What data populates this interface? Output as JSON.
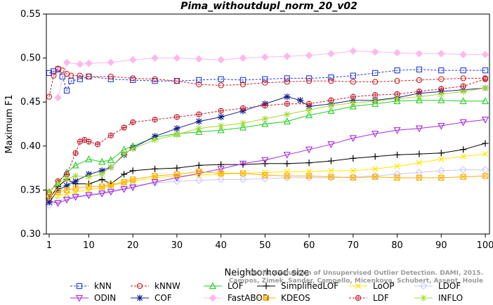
{
  "chart_data": {
    "type": "line",
    "title": "Pima_withoutdupl_norm_20_v02",
    "xlabel": "Neighborhood size",
    "ylabel": "Maximum F1",
    "xlim": [
      1,
      100
    ],
    "ylim": [
      0.3,
      0.55
    ],
    "xticks": [
      1,
      10,
      20,
      30,
      40,
      50,
      60,
      70,
      80,
      90,
      100
    ],
    "yticks": [
      0.3,
      0.35,
      0.4,
      0.45,
      0.5,
      0.55
    ],
    "ytick_labels": [
      "0.30",
      "0.35",
      "0.40",
      "0.45",
      "0.50",
      "0.55"
    ],
    "grid": false,
    "legend_position": "bottom",
    "watermark": "Campos, Zimek, Sander, Campello, Micenkova, Schubert, Assent, Houle",
    "watermark_line1": "On the Evaluation of Unsupervised Outlier Detection. DAMI, 2015.",
    "series": [
      {
        "name": "kNN",
        "color": "#1f3fdc",
        "marker": "square",
        "dash": "3,2",
        "x": [
          1,
          2,
          3,
          4,
          5,
          6,
          8,
          10,
          15,
          20,
          25,
          30,
          35,
          40,
          45,
          50,
          55,
          60,
          65,
          70,
          75,
          80,
          85,
          90,
          95,
          100
        ],
        "y": [
          0.483,
          0.485,
          0.487,
          0.479,
          0.463,
          0.474,
          0.476,
          0.479,
          0.476,
          0.475,
          0.474,
          0.474,
          0.475,
          0.476,
          0.475,
          0.476,
          0.477,
          0.477,
          0.478,
          0.48,
          0.483,
          0.486,
          0.487,
          0.486,
          0.486,
          0.486
        ]
      },
      {
        "name": "kNNW",
        "color": "#d21e1e",
        "marker": "circle",
        "dash": "3,2",
        "x": [
          1,
          2,
          3,
          4,
          5,
          6,
          8,
          10,
          15,
          20,
          25,
          30,
          35,
          40,
          45,
          50,
          55,
          60,
          65,
          70,
          75,
          80,
          85,
          90,
          95,
          100
        ],
        "y": [
          0.456,
          0.48,
          0.488,
          0.486,
          0.482,
          0.48,
          0.48,
          0.479,
          0.479,
          0.477,
          0.476,
          0.474,
          0.47,
          0.469,
          0.47,
          0.472,
          0.473,
          0.474,
          0.474,
          0.473,
          0.473,
          0.474,
          0.475,
          0.476,
          0.477,
          0.477
        ]
      },
      {
        "name": "LOF",
        "color": "#1fcf1f",
        "marker": "triangle-up",
        "dash": "",
        "x": [
          1,
          3,
          5,
          7,
          10,
          13,
          15,
          18,
          20,
          25,
          30,
          35,
          40,
          45,
          50,
          55,
          60,
          65,
          70,
          75,
          80,
          85,
          90,
          95,
          100
        ],
        "y": [
          0.348,
          0.358,
          0.37,
          0.378,
          0.385,
          0.382,
          0.384,
          0.396,
          0.4,
          0.41,
          0.414,
          0.416,
          0.418,
          0.421,
          0.425,
          0.428,
          0.435,
          0.44,
          0.445,
          0.448,
          0.451,
          0.452,
          0.452,
          0.451,
          0.451
        ]
      },
      {
        "name": "SimplifiedLOF",
        "color": "#000000",
        "marker": "plus",
        "dash": "",
        "x": [
          1,
          3,
          5,
          7,
          10,
          13,
          15,
          18,
          20,
          25,
          30,
          35,
          40,
          45,
          50,
          55,
          60,
          65,
          70,
          75,
          80,
          85,
          90,
          95,
          100
        ],
        "y": [
          0.34,
          0.354,
          0.362,
          0.357,
          0.357,
          0.362,
          0.357,
          0.368,
          0.372,
          0.374,
          0.375,
          0.378,
          0.379,
          0.379,
          0.38,
          0.38,
          0.381,
          0.383,
          0.386,
          0.388,
          0.39,
          0.391,
          0.392,
          0.396,
          0.403
        ]
      },
      {
        "name": "LoOP",
        "color": "#ffe600",
        "marker": "x",
        "dash": "",
        "x": [
          1,
          3,
          5,
          7,
          10,
          13,
          15,
          18,
          20,
          25,
          30,
          35,
          40,
          45,
          50,
          55,
          60,
          65,
          70,
          75,
          80,
          85,
          90,
          95,
          100
        ],
        "y": [
          0.339,
          0.343,
          0.346,
          0.348,
          0.35,
          0.353,
          0.355,
          0.358,
          0.36,
          0.364,
          0.366,
          0.367,
          0.368,
          0.369,
          0.37,
          0.371,
          0.371,
          0.372,
          0.372,
          0.374,
          0.377,
          0.381,
          0.385,
          0.388,
          0.391
        ]
      },
      {
        "name": "LDOF",
        "color": "#c8c8ff",
        "marker": "diamond",
        "dash": "",
        "x": [
          1,
          3,
          5,
          7,
          10,
          13,
          15,
          18,
          20,
          25,
          30,
          35,
          40,
          45,
          50,
          55,
          60,
          65,
          70,
          75,
          80,
          85,
          90,
          95,
          100
        ],
        "y": [
          0.333,
          0.337,
          0.341,
          0.343,
          0.345,
          0.347,
          0.349,
          0.352,
          0.355,
          0.358,
          0.36,
          0.361,
          0.362,
          0.362,
          0.363,
          0.364,
          0.364,
          0.364,
          0.365,
          0.366,
          0.368,
          0.37,
          0.372,
          0.373,
          0.373
        ]
      },
      {
        "name": "ODIN",
        "color": "#a82bd9",
        "marker": "triangle-down",
        "dash": "",
        "x": [
          1,
          3,
          5,
          7,
          10,
          13,
          15,
          18,
          20,
          25,
          30,
          35,
          40,
          45,
          50,
          55,
          60,
          65,
          70,
          75,
          80,
          85,
          90,
          95,
          100
        ],
        "y": [
          0.338,
          0.335,
          0.339,
          0.342,
          0.344,
          0.346,
          0.348,
          0.351,
          0.353,
          0.359,
          0.364,
          0.369,
          0.374,
          0.38,
          0.384,
          0.39,
          0.396,
          0.402,
          0.409,
          0.414,
          0.418,
          0.42,
          0.423,
          0.427,
          0.43
        ]
      },
      {
        "name": "COF",
        "color": "#13208e",
        "marker": "star",
        "dash": "",
        "x": [
          1,
          3,
          5,
          7,
          10,
          13,
          15,
          18,
          20,
          25,
          30,
          35,
          40,
          45,
          50,
          55,
          58,
          60,
          65,
          70,
          75,
          80,
          85,
          90,
          95,
          100
        ],
        "y": [
          0.336,
          0.35,
          0.355,
          0.36,
          0.368,
          0.372,
          0.376,
          0.39,
          0.398,
          0.411,
          0.42,
          0.428,
          0.433,
          0.44,
          0.448,
          0.456,
          0.452,
          0.445,
          0.448,
          0.452,
          0.452,
          0.455,
          0.46,
          0.462,
          0.464,
          0.466
        ]
      },
      {
        "name": "FastABOD",
        "color": "#ffb8ea",
        "marker": "diamond-filled",
        "dash": "",
        "x": [
          3,
          5,
          8,
          10,
          15,
          20,
          25,
          30,
          35,
          40,
          45,
          50,
          55,
          60,
          65,
          70,
          75,
          80,
          85,
          90,
          95,
          100
        ],
        "y": [
          0.455,
          0.495,
          0.493,
          0.494,
          0.495,
          0.498,
          0.5,
          0.5,
          0.499,
          0.498,
          0.5,
          0.501,
          0.502,
          0.503,
          0.505,
          0.508,
          0.507,
          0.506,
          0.505,
          0.505,
          0.504,
          0.504
        ]
      },
      {
        "name": "KDEOS",
        "color": "#ffae00",
        "marker": "square-x",
        "dash": "",
        "x": [
          1,
          3,
          5,
          7,
          10,
          13,
          15,
          18,
          20,
          25,
          30,
          35,
          40,
          45,
          50,
          55,
          60,
          65,
          70,
          75,
          80,
          85,
          90,
          95,
          100
        ],
        "y": [
          0.344,
          0.348,
          0.35,
          0.352,
          0.354,
          0.354,
          0.356,
          0.359,
          0.362,
          0.366,
          0.368,
          0.371,
          0.369,
          0.369,
          0.367,
          0.366,
          0.366,
          0.365,
          0.364,
          0.365,
          0.364,
          0.364,
          0.364,
          0.365,
          0.366
        ]
      },
      {
        "name": "LDF",
        "color": "#c51a2a",
        "marker": "circle-plus",
        "dash": "3,2",
        "x": [
          1,
          3,
          5,
          7,
          8,
          9,
          10,
          12,
          15,
          18,
          20,
          25,
          30,
          35,
          40,
          45,
          50,
          55,
          60,
          65,
          70,
          75,
          80,
          85,
          90,
          95,
          100
        ],
        "y": [
          0.347,
          0.36,
          0.368,
          0.392,
          0.405,
          0.407,
          0.405,
          0.402,
          0.412,
          0.421,
          0.427,
          0.43,
          0.433,
          0.436,
          0.44,
          0.443,
          0.446,
          0.448,
          0.448,
          0.452,
          0.456,
          0.458,
          0.459,
          0.462,
          0.465,
          0.468,
          0.476
        ]
      },
      {
        "name": "INFLO",
        "color": "#a5d834",
        "marker": "x-square",
        "dash": "",
        "x": [
          1,
          3,
          5,
          7,
          10,
          13,
          15,
          18,
          20,
          25,
          30,
          35,
          40,
          45,
          50,
          55,
          60,
          65,
          70,
          75,
          80,
          85,
          90,
          95,
          100
        ],
        "y": [
          0.348,
          0.357,
          0.363,
          0.366,
          0.365,
          0.368,
          0.376,
          0.391,
          0.397,
          0.407,
          0.413,
          0.42,
          0.423,
          0.426,
          0.431,
          0.436,
          0.441,
          0.446,
          0.449,
          0.451,
          0.454,
          0.456,
          0.459,
          0.462,
          0.466
        ]
      }
    ]
  }
}
